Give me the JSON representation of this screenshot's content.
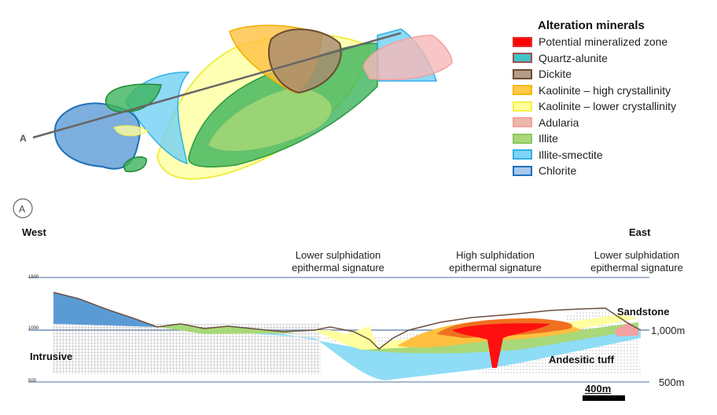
{
  "plan_view": {
    "section_line_label": "A"
  },
  "section_marker": "A",
  "legend": {
    "title": "Alteration minerals",
    "items": [
      {
        "label": "Potential mineralized zone",
        "fill": "#ff0000",
        "border": "#e03030"
      },
      {
        "label": "Quartz-alunite",
        "fill": "#3fc4c8",
        "border": "#a05050"
      },
      {
        "label": "Dickite",
        "fill": "#b59c88",
        "border": "#6b4a2e"
      },
      {
        "label": "Kaolinite – high crystallinity",
        "fill": "#ffc94a",
        "border": "#f5b800"
      },
      {
        "label": "Kaolinite – lower crystallinity",
        "fill": "#ffff9e",
        "border": "#f3f04a"
      },
      {
        "label": "Adularia",
        "fill": "#ecb8a8",
        "border": "#f4a0a0"
      },
      {
        "label": "Illite",
        "fill": "#a8d878",
        "border": "#8cc860"
      },
      {
        "label": "Illite-smectite",
        "fill": "#7fd4f4",
        "border": "#30b0e8"
      },
      {
        "label": "Chlorite",
        "fill": "#a8c8ec",
        "border": "#2070b8"
      }
    ]
  },
  "section": {
    "west": "West",
    "east": "East",
    "signatures": [
      "Lower sulphidation epithermal signature",
      "High sulphidation epithermal signature",
      "Lower  sulphidation epithermal signature"
    ],
    "rock_labels": {
      "intrusive": "Intrusive",
      "sandstone": "Sandstone",
      "andesitic_tuff": "Andesitic tuff"
    },
    "elevations": {
      "e1500": "1500",
      "e1000": "1000",
      "e500": "500",
      "right_1000": "1,000m",
      "right_500": "500m"
    },
    "scale_bar": "400m"
  }
}
